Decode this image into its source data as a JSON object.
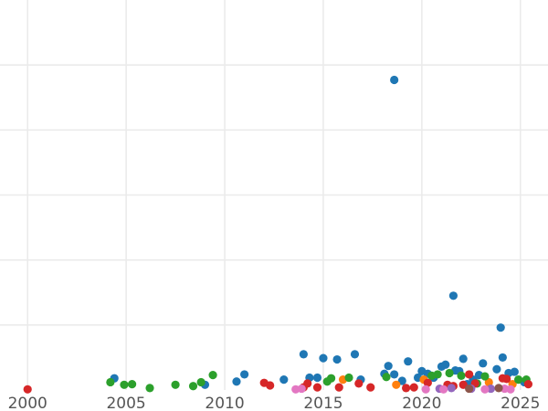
{
  "chart_data": {
    "type": "scatter",
    "title": "",
    "xlabel": "",
    "ylabel": "",
    "xlim": [
      1998.6,
      2026.4
    ],
    "ylim": [
      0,
      6.0
    ],
    "x_ticks": [
      2000,
      2005,
      2010,
      2015,
      2020,
      2025
    ],
    "x_tick_labels": [
      "2000",
      "2005",
      "2010",
      "2015",
      "2020",
      "2025"
    ],
    "y_gridlines": [
      1,
      2,
      3,
      4,
      5
    ],
    "grid": true,
    "legend": "none",
    "series": [
      {
        "color": "#1f77b4",
        "points": [
          [
            2004.4,
            0.18
          ],
          [
            2009.0,
            0.08
          ],
          [
            2010.6,
            0.13
          ],
          [
            2011.0,
            0.24
          ],
          [
            2013.0,
            0.16
          ],
          [
            2014.0,
            0.55
          ],
          [
            2014.3,
            0.19
          ],
          [
            2014.7,
            0.19
          ],
          [
            2015.0,
            0.49
          ],
          [
            2015.7,
            0.47
          ],
          [
            2016.6,
            0.55
          ],
          [
            2016.9,
            0.16
          ],
          [
            2018.1,
            0.25
          ],
          [
            2018.3,
            0.37
          ],
          [
            2018.6,
            4.77
          ],
          [
            2018.6,
            0.24
          ],
          [
            2019.0,
            0.14
          ],
          [
            2019.3,
            0.44
          ],
          [
            2019.8,
            0.19
          ],
          [
            2020.0,
            0.29
          ],
          [
            2020.3,
            0.25
          ],
          [
            2020.6,
            0.19
          ],
          [
            2021.0,
            0.36
          ],
          [
            2021.2,
            0.39
          ],
          [
            2021.6,
            1.45
          ],
          [
            2021.7,
            0.3
          ],
          [
            2021.9,
            0.29
          ],
          [
            2022.1,
            0.48
          ],
          [
            2022.3,
            0.09
          ],
          [
            2022.6,
            0.16
          ],
          [
            2022.9,
            0.23
          ],
          [
            2023.1,
            0.41
          ],
          [
            2023.8,
            0.32
          ],
          [
            2024.0,
            0.96
          ],
          [
            2024.1,
            0.5
          ],
          [
            2024.4,
            0.26
          ],
          [
            2024.7,
            0.28
          ],
          [
            2025.2,
            0.12
          ]
        ]
      },
      {
        "color": "#ff7f0e",
        "points": [
          [
            2016.0,
            0.16
          ],
          [
            2018.7,
            0.08
          ],
          [
            2020.1,
            0.16
          ],
          [
            2023.4,
            0.12
          ],
          [
            2024.6,
            0.09
          ]
        ]
      },
      {
        "color": "#2ca02c",
        "points": [
          [
            2004.2,
            0.12
          ],
          [
            2004.9,
            0.08
          ],
          [
            2005.3,
            0.09
          ],
          [
            2006.2,
            0.03
          ],
          [
            2007.5,
            0.08
          ],
          [
            2008.4,
            0.06
          ],
          [
            2008.8,
            0.12
          ],
          [
            2009.4,
            0.23
          ],
          [
            2015.2,
            0.13
          ],
          [
            2015.4,
            0.18
          ],
          [
            2016.3,
            0.19
          ],
          [
            2018.2,
            0.2
          ],
          [
            2020.5,
            0.22
          ],
          [
            2020.8,
            0.24
          ],
          [
            2021.4,
            0.26
          ],
          [
            2022.0,
            0.22
          ],
          [
            2022.8,
            0.1
          ],
          [
            2023.2,
            0.21
          ],
          [
            2024.9,
            0.16
          ],
          [
            2025.3,
            0.16
          ]
        ]
      },
      {
        "color": "#d62728",
        "points": [
          [
            2000.0,
            0.01
          ],
          [
            2012.0,
            0.11
          ],
          [
            2012.3,
            0.07
          ],
          [
            2014.0,
            0.04
          ],
          [
            2014.2,
            0.1
          ],
          [
            2014.7,
            0.04
          ],
          [
            2015.8,
            0.04
          ],
          [
            2016.8,
            0.1
          ],
          [
            2017.4,
            0.04
          ],
          [
            2019.2,
            0.03
          ],
          [
            2019.6,
            0.04
          ],
          [
            2020.3,
            0.11
          ],
          [
            2021.3,
            0.08
          ],
          [
            2021.6,
            0.06
          ],
          [
            2022.1,
            0.08
          ],
          [
            2022.4,
            0.24
          ],
          [
            2022.7,
            0.1
          ],
          [
            2024.1,
            0.18
          ],
          [
            2024.3,
            0.17
          ],
          [
            2025.4,
            0.09
          ]
        ]
      },
      {
        "color": "#9467bd",
        "points": [
          [
            2020.9,
            0.02
          ],
          [
            2021.5,
            0.03
          ],
          [
            2022.5,
            0.02
          ],
          [
            2023.5,
            0.02
          ]
        ]
      },
      {
        "color": "#e377c2",
        "points": [
          [
            2013.6,
            0.01
          ],
          [
            2013.9,
            0.02
          ],
          [
            2020.2,
            0.01
          ],
          [
            2021.1,
            0.01
          ],
          [
            2023.2,
            0.01
          ],
          [
            2024.2,
            0.02
          ],
          [
            2024.5,
            0.01
          ]
        ]
      },
      {
        "color": "#8c564b",
        "points": [
          [
            2022.4,
            0.02
          ],
          [
            2023.9,
            0.03
          ]
        ]
      }
    ]
  }
}
